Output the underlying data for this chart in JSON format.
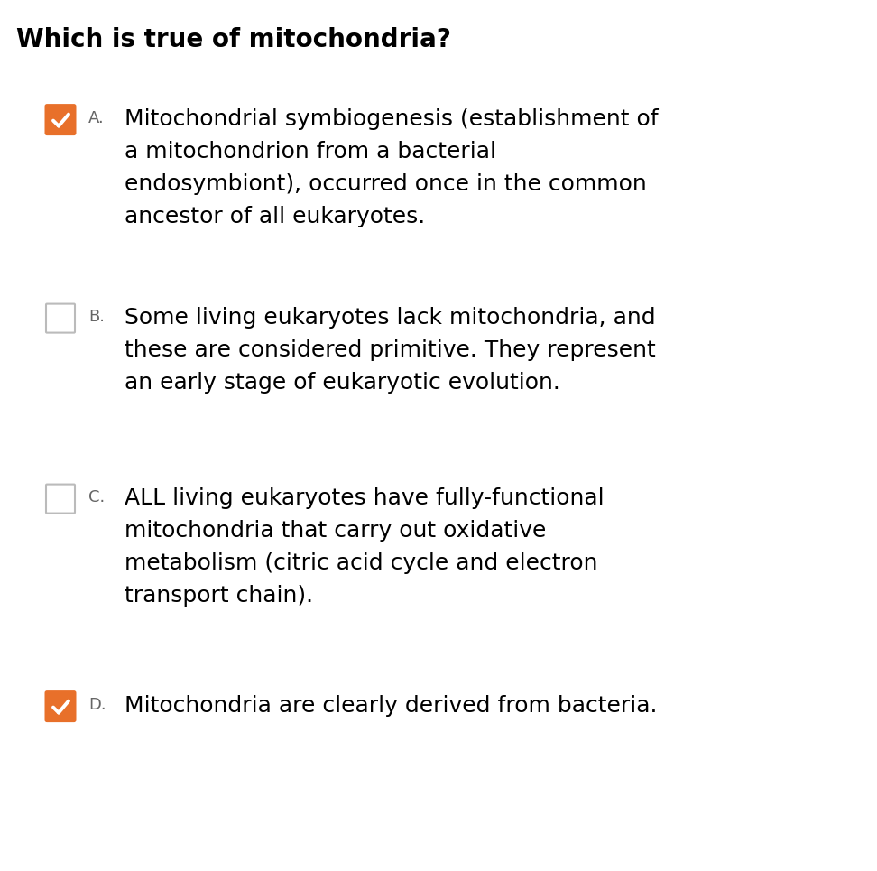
{
  "title": "Which is true of mitochondria?",
  "title_fontsize": 20,
  "background_color": "#ffffff",
  "text_color": "#000000",
  "checkbox_color_checked": "#E8702A",
  "checkbox_color_unchecked": "#ffffff",
  "letter_color": "#666666",
  "letter_fontsize": 13,
  "answer_fontsize": 18,
  "options": [
    {
      "letter": "A.",
      "text": "Mitochondrial symbiogenesis (establishment of\na mitochondrion from a bacterial\nendosymbiont), occurred once in the common\nancestor of all eukaryotes.",
      "checked": true
    },
    {
      "letter": "B.",
      "text": "Some living eukaryotes lack mitochondria, and\nthese are considered primitive. They represent\nan early stage of eukaryotic evolution.",
      "checked": false
    },
    {
      "letter": "C.",
      "text": "ALL living eukaryotes have fully-functional\nmitochondria that carry out oxidative\nmetabolism (citric acid cycle and electron\ntransport chain).",
      "checked": false
    },
    {
      "letter": "D.",
      "text": "Mitochondria are clearly derived from bacteria.",
      "checked": true
    }
  ]
}
